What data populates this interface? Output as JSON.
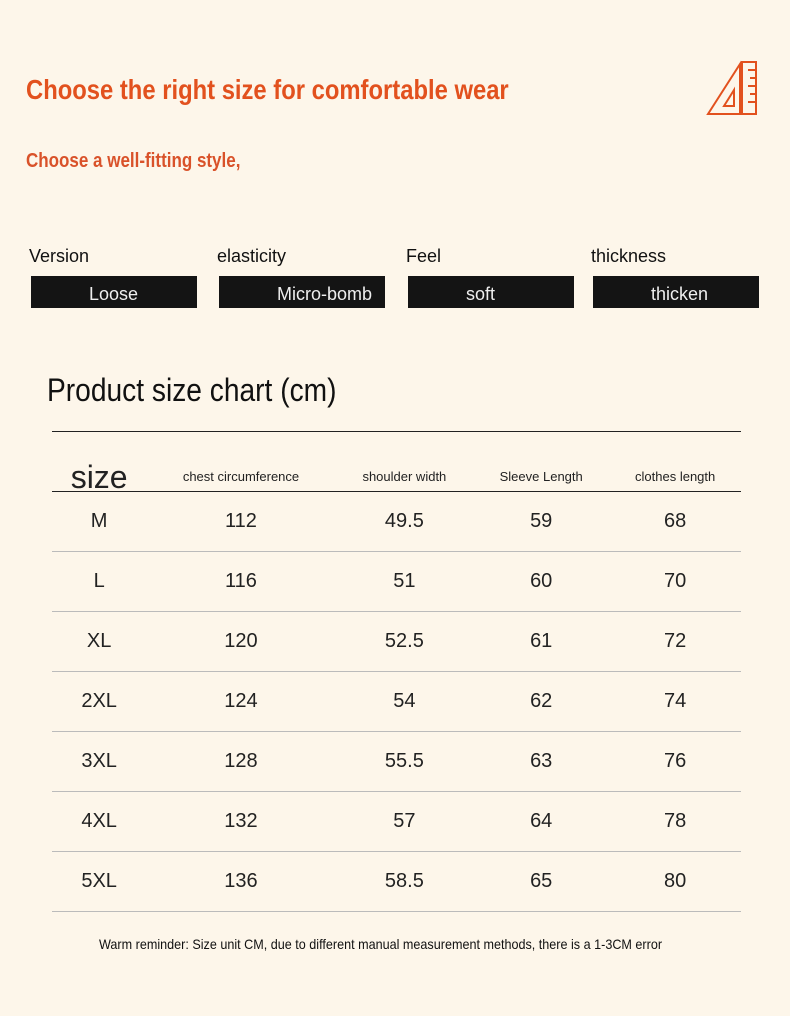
{
  "header": {
    "title": "Choose the right size for comfortable wear",
    "subtitle": "Choose a well-fitting style,"
  },
  "attributes": [
    {
      "label": "Version",
      "value": "Loose"
    },
    {
      "label": "elasticity",
      "value": "Micro-bomb"
    },
    {
      "label": "Feel",
      "value": "soft"
    },
    {
      "label": "thickness",
      "value": "thicken"
    }
  ],
  "table": {
    "title": "Product size chart (cm)",
    "columns": [
      "size",
      "chest circumference",
      "shoulder width",
      "Sleeve Length",
      "clothes length"
    ],
    "rows": [
      [
        "M",
        "112",
        "49.5",
        "59",
        "68"
      ],
      [
        "L",
        "116",
        "51",
        "60",
        "70"
      ],
      [
        "XL",
        "120",
        "52.5",
        "61",
        "72"
      ],
      [
        "2XL",
        "124",
        "54",
        "62",
        "74"
      ],
      [
        "3XL",
        "128",
        "55.5",
        "63",
        "76"
      ],
      [
        "4XL",
        "132",
        "57",
        "64",
        "78"
      ],
      [
        "5XL",
        "136",
        "58.5",
        "65",
        "80"
      ]
    ]
  },
  "footer": {
    "note": "Warm reminder: Size unit CM, due to different manual measurement methods, there is a 1-3CM error"
  }
}
